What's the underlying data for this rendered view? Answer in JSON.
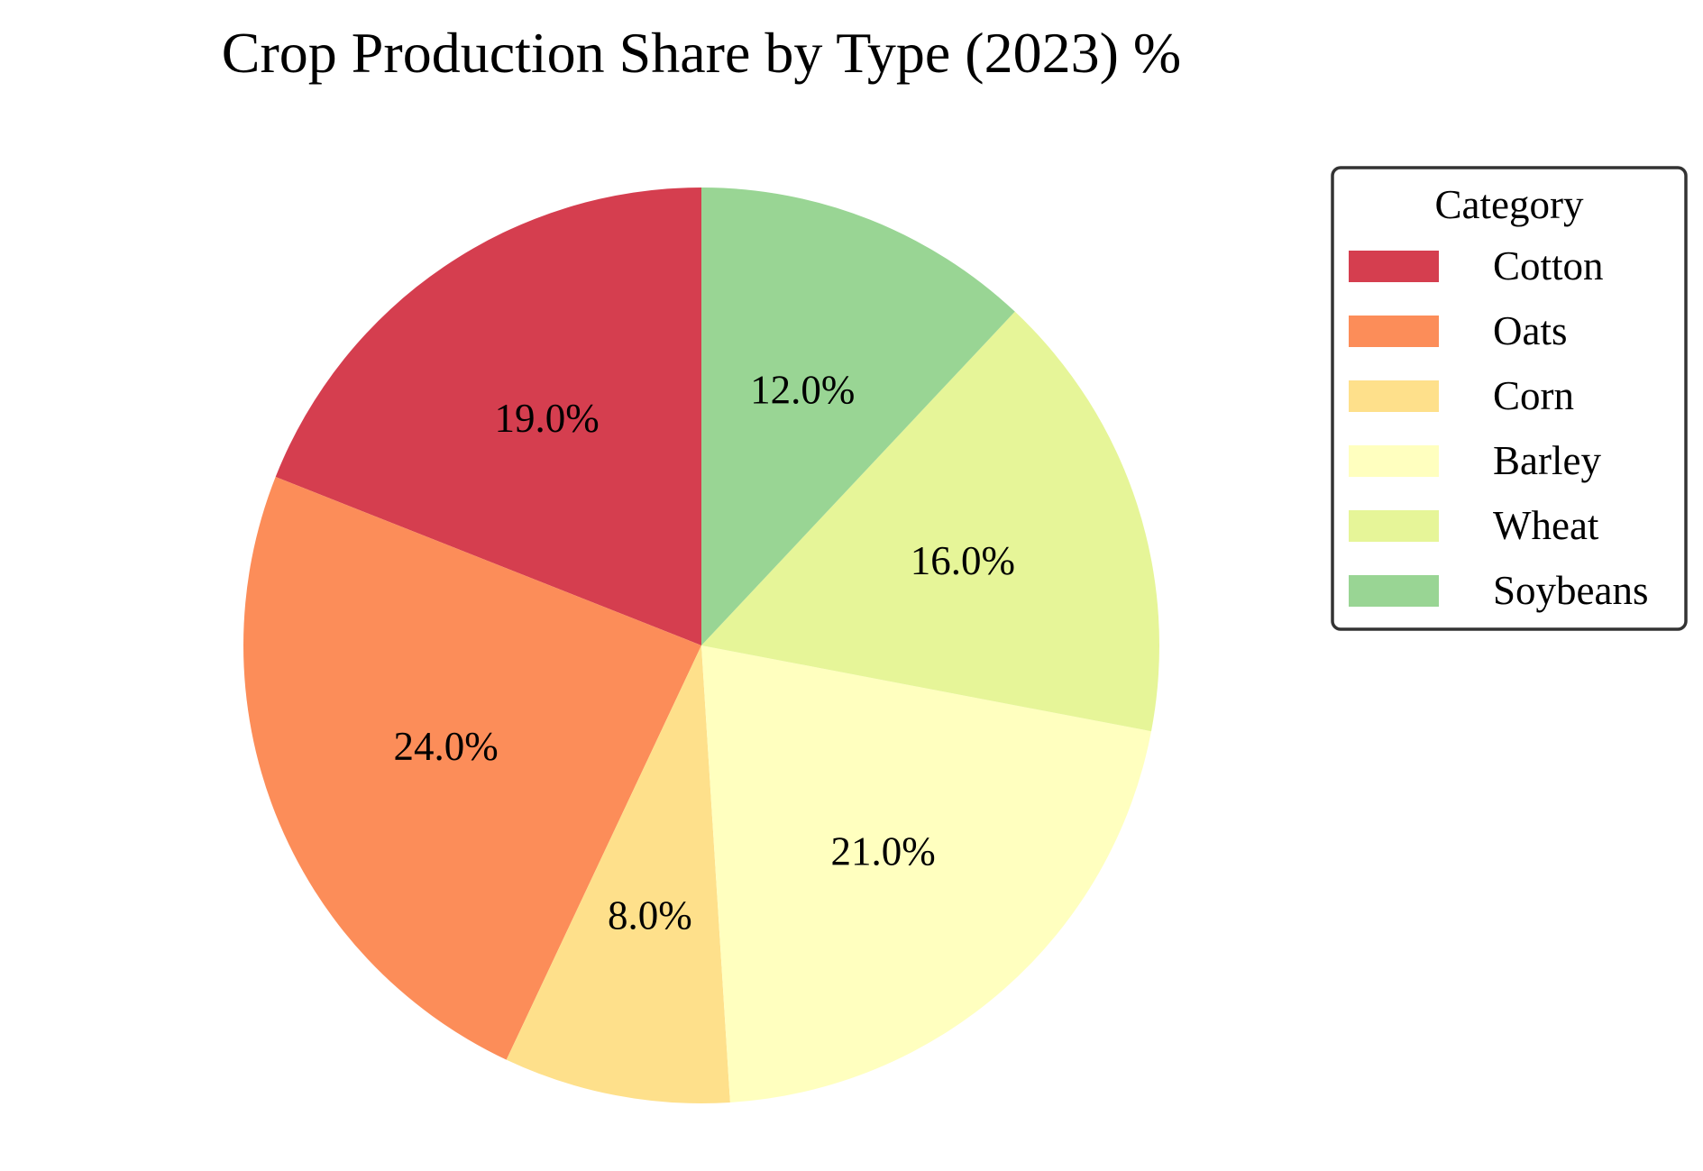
{
  "chart_data": {
    "type": "pie",
    "title": "Crop Production Share by Type (2023) %",
    "categories": [
      "Cotton",
      "Oats",
      "Corn",
      "Barley",
      "Wheat",
      "Soybeans"
    ],
    "values": [
      19.0,
      24.0,
      8.0,
      21.0,
      16.0,
      12.0
    ],
    "value_labels": [
      "19.0%",
      "24.0%",
      "8.0%",
      "21.0%",
      "16.0%",
      "12.0%"
    ],
    "colors": [
      "#d53e4f",
      "#fc8d59",
      "#fee08b",
      "#ffffbf",
      "#e6f598",
      "#99d594"
    ],
    "start_angle_deg": 90,
    "direction": "counterclockwise",
    "legend": {
      "title": "Category",
      "placement": "upper-right, outside plot"
    }
  }
}
